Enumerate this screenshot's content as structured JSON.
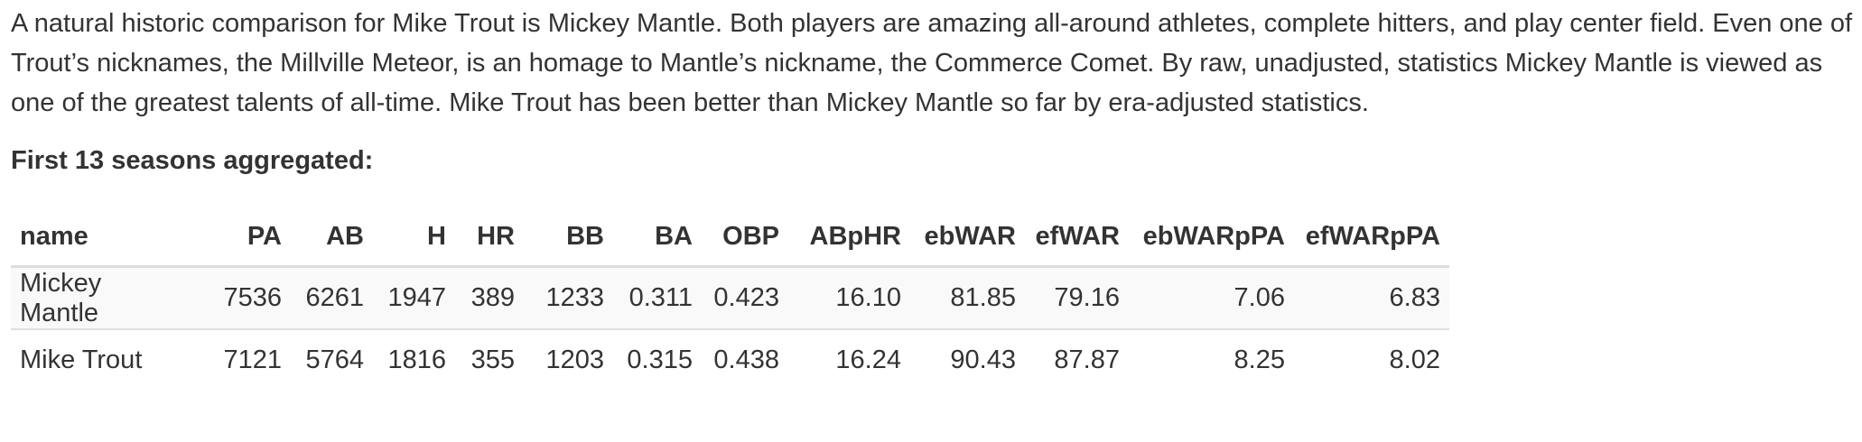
{
  "intro": "A natural historic comparison for Mike Trout is Mickey Mantle. Both players are amazing all-around athletes, complete hitters, and play center field. Even one of Trout’s nicknames, the Millville Meteor, is an homage to Mantle’s nickname, the Commerce Comet. By raw, unadjusted, statistics Mickey Mantle is viewed as one of the greatest talents of all-time. Mike Trout has been better than Mickey Mantle so far by era-adjusted statistics.",
  "heading": "First 13 seasons aggregated:",
  "table": {
    "columns": [
      "name",
      "PA",
      "AB",
      "H",
      "HR",
      "BB",
      "BA",
      "OBP",
      "ABpHR",
      "ebWAR",
      "efWAR",
      "ebWARpPA",
      "efWARpPA"
    ],
    "rows": [
      [
        "Mickey Mantle",
        "7536",
        "6261",
        "1947",
        "389",
        "1233",
        "0.311",
        "0.423",
        "16.10",
        "81.85",
        "79.16",
        "7.06",
        "6.83"
      ],
      [
        "Mike Trout",
        "7121",
        "5764",
        "1816",
        "355",
        "1203",
        "0.315",
        "0.438",
        "16.24",
        "90.43",
        "87.87",
        "8.25",
        "8.02"
      ]
    ]
  }
}
